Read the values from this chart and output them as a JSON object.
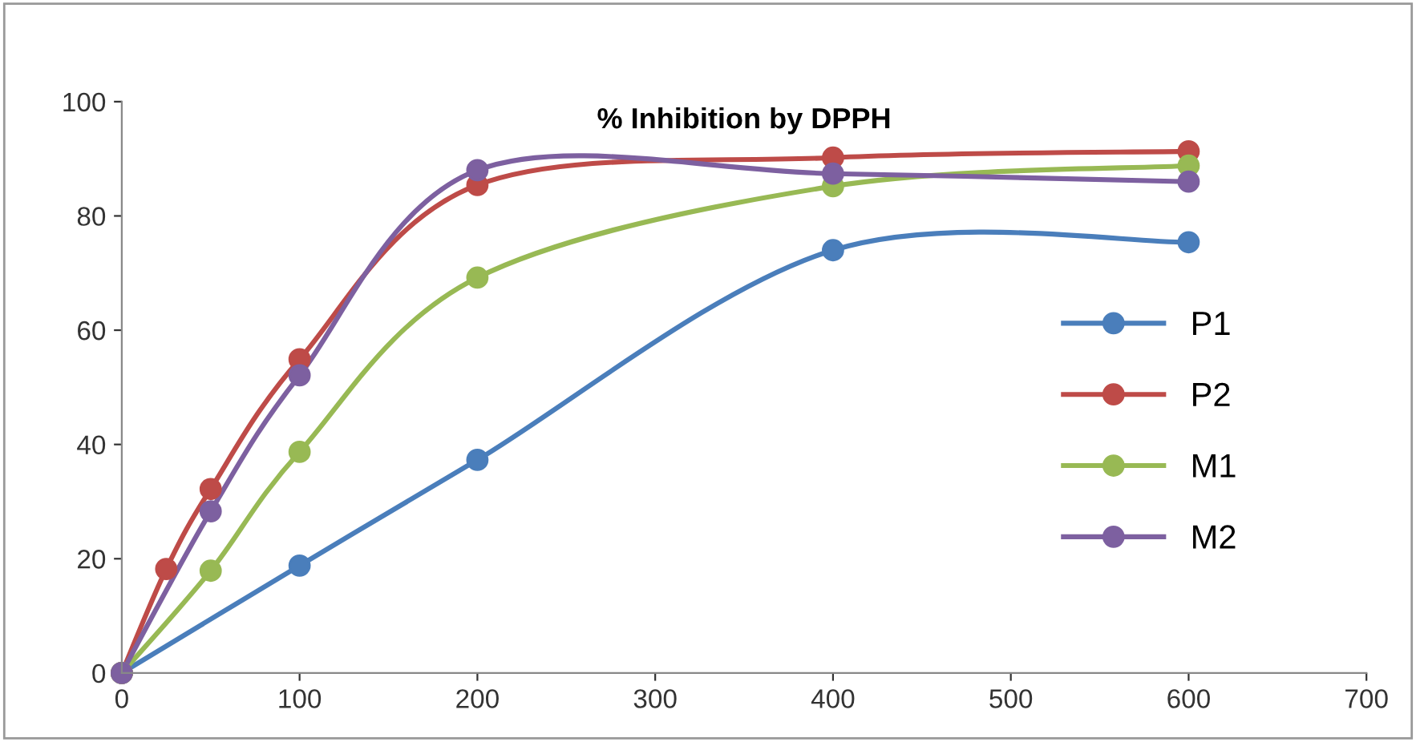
{
  "chart_data": {
    "type": "line",
    "title": "% Inhibition by DPPH",
    "xlim": [
      0,
      700
    ],
    "xticks": [
      0,
      100,
      200,
      300,
      400,
      500,
      600,
      700
    ],
    "ylim": [
      0,
      100
    ],
    "yticks": [
      0,
      20,
      40,
      60,
      80,
      100
    ],
    "grid": false,
    "legend": "right",
    "marker": "circle",
    "line_style": "solid",
    "series": [
      {
        "name": "P1",
        "color": "#4a7ebb",
        "x": [
          0,
          100,
          200,
          400,
          600
        ],
        "values": [
          0,
          18.8,
          37.3,
          74,
          75.4
        ]
      },
      {
        "name": "P2",
        "color": "#be4b48",
        "x": [
          0,
          25,
          50,
          100,
          200,
          400,
          600
        ],
        "values": [
          0,
          18.2,
          32.2,
          54.9,
          85.4,
          90.2,
          91.3
        ]
      },
      {
        "name": "M1",
        "color": "#98b954",
        "x": [
          0,
          50,
          100,
          200,
          400,
          600
        ],
        "values": [
          0,
          17.9,
          38.7,
          69.2,
          85.2,
          88.8
        ]
      },
      {
        "name": "M2",
        "color": "#7d60a0",
        "x": [
          0,
          50,
          100,
          200,
          400,
          600
        ],
        "values": [
          0,
          28.3,
          52.1,
          88,
          87.4,
          86
        ]
      }
    ]
  }
}
